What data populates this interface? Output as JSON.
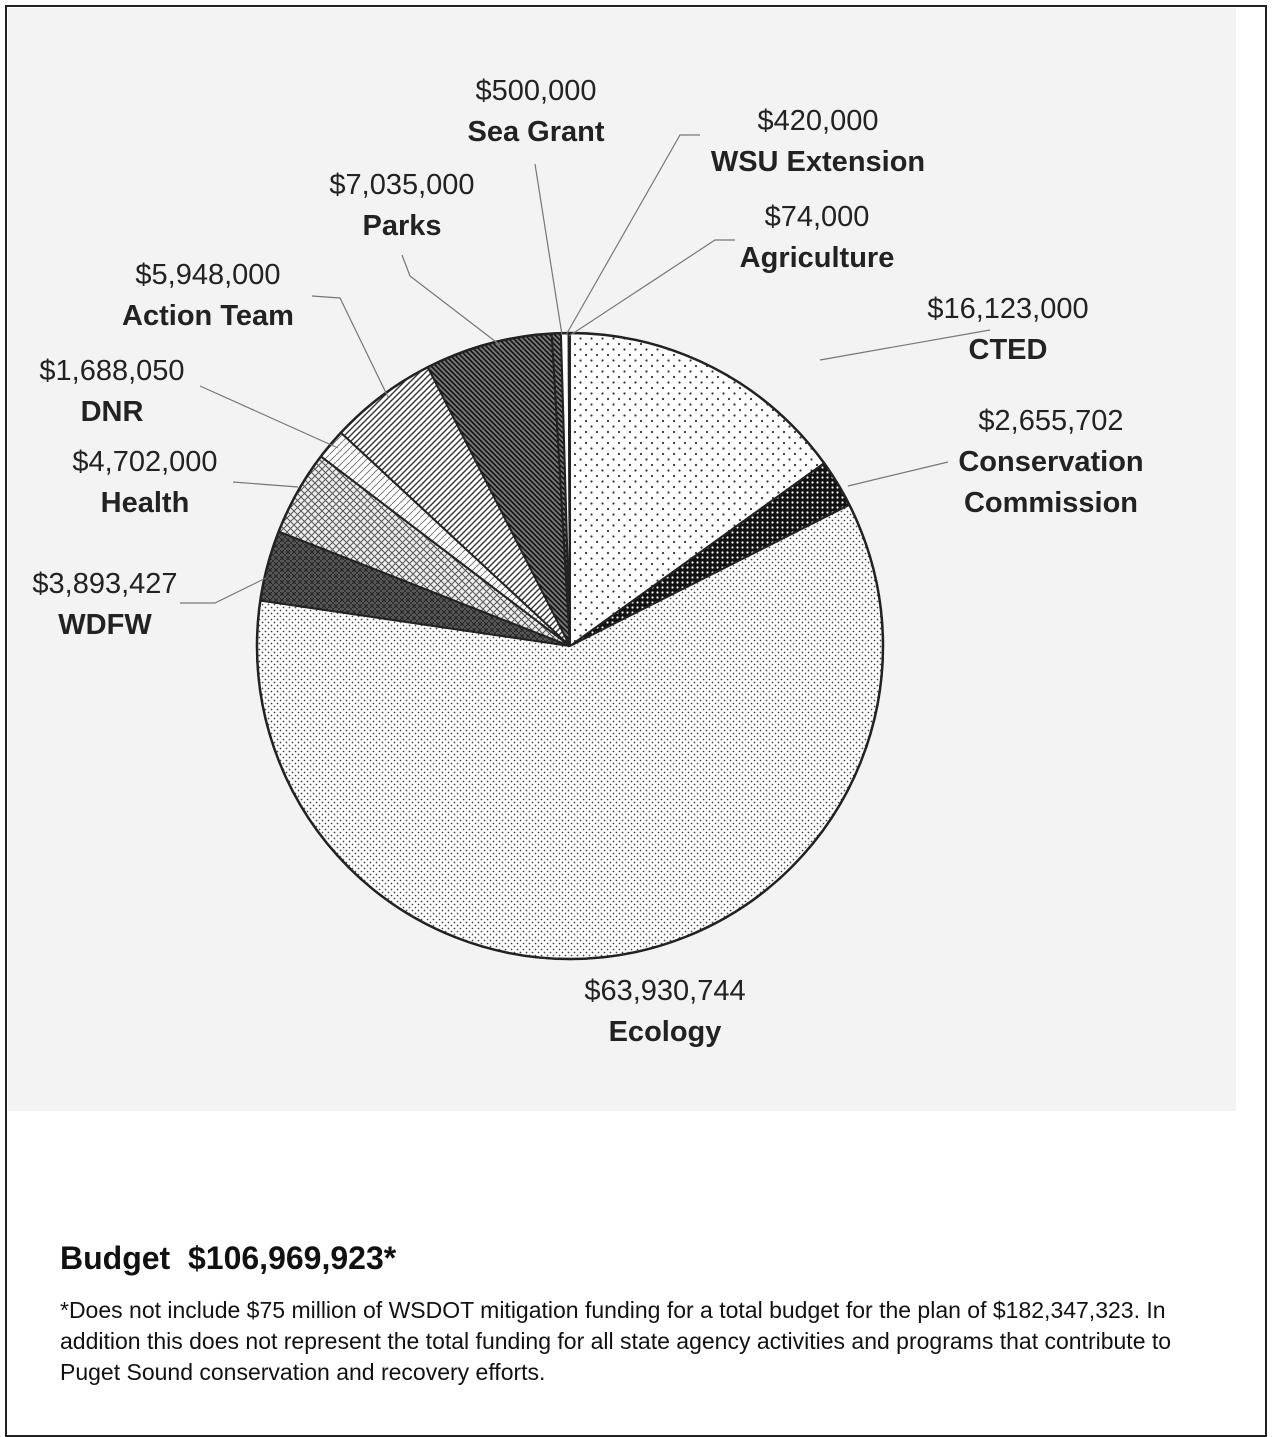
{
  "chart_data": {
    "type": "pie",
    "slices": [
      {
        "label": "CTED",
        "value_label": "$16,123,000",
        "value": 16123000,
        "pattern": "sparse-dots"
      },
      {
        "label": "Conservation Commission",
        "value_label": "$2,655,702",
        "value": 2655702,
        "pattern": "dark-dots"
      },
      {
        "label": "Ecology",
        "value_label": "$63,930,744",
        "value": 63930744,
        "pattern": "fine-dots"
      },
      {
        "label": "WDFW",
        "value_label": "$3,893,427",
        "value": 3893427,
        "pattern": "dark-grid"
      },
      {
        "label": "Health",
        "value_label": "$4,702,000",
        "value": 4702000,
        "pattern": "grid"
      },
      {
        "label": "DNR",
        "value_label": "$1,688,050",
        "value": 1688050,
        "pattern": "light-hatch"
      },
      {
        "label": "Action Team",
        "value_label": "$5,948,000",
        "value": 5948000,
        "pattern": "hatch"
      },
      {
        "label": "Parks",
        "value_label": "$7,035,000",
        "value": 7035000,
        "pattern": "dense-hatch"
      },
      {
        "label": "Sea Grant",
        "value_label": "$500,000",
        "value": 500000,
        "pattern": "dense-hatch"
      },
      {
        "label": "WSU Extension",
        "value_label": "$420,000",
        "value": 420000,
        "pattern": "white"
      },
      {
        "label": "Agriculture",
        "value_label": "$74,000",
        "value": 74000,
        "pattern": "dark-grid"
      }
    ]
  },
  "budget_label": "Budget  $106,969,923*",
  "footnote": "*Does not include $75 million of WSDOT mitigation funding for a total budget for the plan of $182,347,323. In addition this does not represent the total funding for all state agency activities and programs that contribute to Puget Sound conservation and recovery efforts.",
  "colors": {
    "stroke": "#222222",
    "ink": "#222222",
    "plot_background": "#f3f3f3"
  }
}
